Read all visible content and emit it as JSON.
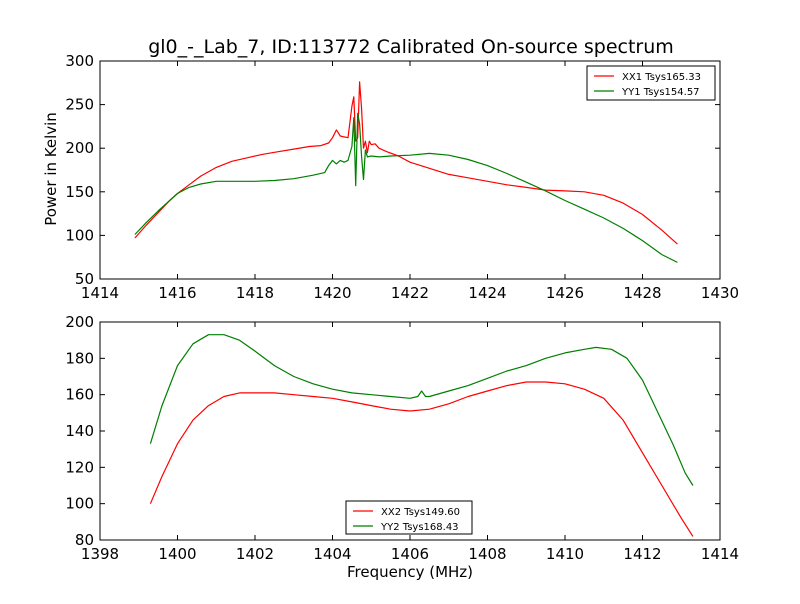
{
  "figure": {
    "title": "gl0_-_Lab_7, ID:113772 Calibrated On-source spectrum",
    "ylabel": "Power in Kelvin",
    "xlabel": "Frequency (MHz)"
  },
  "colors": {
    "red": "#ff0000",
    "green": "#007f00"
  },
  "chart_data": [
    {
      "type": "line",
      "title": "gl0_-_Lab_7, ID:113772 Calibrated On-source spectrum",
      "xlabel": "",
      "ylabel": "Power in Kelvin",
      "xlim": [
        1414,
        1430
      ],
      "ylim": [
        50,
        300
      ],
      "xticks": [
        1414,
        1416,
        1418,
        1420,
        1422,
        1424,
        1426,
        1428,
        1430
      ],
      "yticks": [
        50,
        100,
        150,
        200,
        250,
        300
      ],
      "legend_position": "top-right",
      "series": [
        {
          "name": "XX1 Tsys165.33",
          "color": "#ff0000",
          "x": [
            1414.9,
            1415.2,
            1415.5,
            1415.8,
            1416.0,
            1416.3,
            1416.6,
            1417.0,
            1417.4,
            1417.8,
            1418.2,
            1418.6,
            1419.0,
            1419.4,
            1419.7,
            1419.9,
            1420.0,
            1420.1,
            1420.2,
            1420.3,
            1420.4,
            1420.5,
            1420.55,
            1420.6,
            1420.65,
            1420.7,
            1420.75,
            1420.8,
            1420.85,
            1420.9,
            1420.95,
            1421.0,
            1421.1,
            1421.2,
            1421.4,
            1421.7,
            1422.0,
            1422.5,
            1423.0,
            1423.5,
            1424.0,
            1424.5,
            1425.0,
            1425.5,
            1426.0,
            1426.5,
            1427.0,
            1427.5,
            1428.0,
            1428.5,
            1428.9
          ],
          "y": [
            97,
            112,
            126,
            140,
            148,
            158,
            168,
            178,
            185,
            189,
            193,
            196,
            199,
            202,
            203,
            206,
            212,
            221,
            214,
            213,
            212,
            248,
            259,
            208,
            212,
            276,
            245,
            200,
            208,
            195,
            208,
            204,
            205,
            200,
            196,
            191,
            184,
            177,
            170,
            166,
            162,
            158,
            155,
            152,
            151,
            150,
            146,
            137,
            124,
            106,
            90
          ]
        },
        {
          "name": "YY1 Tsys154.57",
          "color": "#007f00",
          "x": [
            1414.9,
            1415.2,
            1415.5,
            1415.8,
            1416.0,
            1416.3,
            1416.6,
            1417.0,
            1417.5,
            1418.0,
            1418.5,
            1419.0,
            1419.5,
            1419.8,
            1419.9,
            1420.0,
            1420.1,
            1420.2,
            1420.3,
            1420.4,
            1420.5,
            1420.55,
            1420.6,
            1420.65,
            1420.7,
            1420.75,
            1420.8,
            1420.85,
            1420.9,
            1421.0,
            1421.2,
            1421.5,
            1422.0,
            1422.5,
            1423.0,
            1423.5,
            1424.0,
            1424.5,
            1425.0,
            1425.5,
            1426.0,
            1426.5,
            1427.0,
            1427.5,
            1428.0,
            1428.5,
            1428.9
          ],
          "y": [
            101,
            115,
            128,
            140,
            148,
            155,
            159,
            162,
            162,
            162,
            163,
            165,
            169,
            172,
            180,
            186,
            182,
            186,
            184,
            186,
            202,
            235,
            157,
            240,
            228,
            190,
            164,
            198,
            190,
            191,
            190,
            191,
            192,
            194,
            192,
            187,
            180,
            171,
            161,
            151,
            140,
            130,
            120,
            108,
            94,
            78,
            69
          ]
        }
      ]
    },
    {
      "type": "line",
      "title": "",
      "xlabel": "Frequency (MHz)",
      "ylabel": "",
      "xlim": [
        1398,
        1414
      ],
      "ylim": [
        80,
        200
      ],
      "xticks": [
        1398,
        1400,
        1402,
        1404,
        1406,
        1408,
        1410,
        1412,
        1414
      ],
      "yticks": [
        80,
        100,
        120,
        140,
        160,
        180,
        200
      ],
      "legend_position": "bottom-center",
      "series": [
        {
          "name": "XX2 Tsys149.60",
          "color": "#ff0000",
          "x": [
            1399.3,
            1399.6,
            1400.0,
            1400.4,
            1400.8,
            1401.2,
            1401.6,
            1402.0,
            1402.5,
            1403.0,
            1403.5,
            1404.0,
            1404.5,
            1405.0,
            1405.5,
            1406.0,
            1406.5,
            1407.0,
            1407.5,
            1408.0,
            1408.5,
            1409.0,
            1409.5,
            1410.0,
            1410.5,
            1411.0,
            1411.5,
            1412.0,
            1412.5,
            1413.0,
            1413.3
          ],
          "y": [
            100,
            115,
            133,
            146,
            154,
            159,
            161,
            161,
            161,
            160,
            159,
            158,
            156,
            154,
            152,
            151,
            152,
            155,
            159,
            162,
            165,
            167,
            167,
            166,
            163,
            158,
            146,
            128,
            110,
            92,
            82
          ]
        },
        {
          "name": "YY2 Tsys168.43",
          "color": "#007f00",
          "x": [
            1399.3,
            1399.6,
            1400.0,
            1400.4,
            1400.8,
            1401.2,
            1401.6,
            1402.0,
            1402.5,
            1403.0,
            1403.5,
            1404.0,
            1404.5,
            1405.0,
            1405.5,
            1406.0,
            1406.2,
            1406.3,
            1406.4,
            1406.5,
            1407.0,
            1407.5,
            1408.0,
            1408.5,
            1409.0,
            1409.5,
            1410.0,
            1410.5,
            1410.8,
            1411.2,
            1411.6,
            1412.0,
            1412.4,
            1412.8,
            1413.1,
            1413.3
          ],
          "y": [
            133,
            154,
            176,
            188,
            193,
            193,
            190,
            184,
            176,
            170,
            166,
            163,
            161,
            160,
            159,
            158,
            159,
            162,
            159,
            159,
            162,
            165,
            169,
            173,
            176,
            180,
            183,
            185,
            186,
            185,
            180,
            168,
            150,
            132,
            117,
            110
          ]
        }
      ]
    }
  ]
}
